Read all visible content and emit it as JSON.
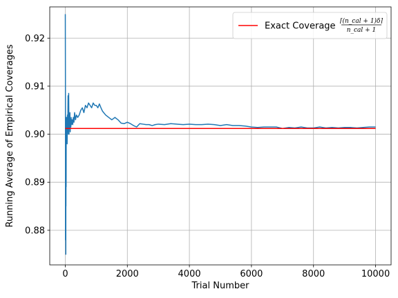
{
  "chart_data": {
    "type": "line",
    "title": "",
    "xlabel": "Trial Number",
    "ylabel": "Running Average of Empirical Coverages",
    "xlim": [
      -500,
      10500
    ],
    "ylim": [
      0.8728,
      0.9265
    ],
    "xticks": [
      0,
      2000,
      4000,
      6000,
      8000,
      10000
    ],
    "xtick_labels": [
      "0",
      "2000",
      "4000",
      "6000",
      "8000",
      "10000"
    ],
    "yticks": [
      0.88,
      0.89,
      0.9,
      0.91,
      0.92
    ],
    "ytick_labels": [
      "0.88",
      "0.89",
      "0.90",
      "0.91",
      "0.92"
    ],
    "grid": true,
    "legend_position": "top-right",
    "legend": {
      "text": "Exact Coverage",
      "numerator": "⌈(n_cal + 1)δ⌉",
      "denominator": "n_cal + 1"
    },
    "series": [
      {
        "name": "",
        "color": "#1f77b4",
        "x": [
          1,
          5,
          8,
          10,
          12,
          15,
          18,
          20,
          22,
          25,
          28,
          30,
          35,
          40,
          45,
          50,
          55,
          60,
          70,
          80,
          90,
          100,
          110,
          120,
          130,
          140,
          150,
          160,
          170,
          180,
          190,
          200,
          220,
          240,
          260,
          280,
          300,
          330,
          360,
          400,
          450,
          500,
          550,
          600,
          650,
          700,
          750,
          800,
          850,
          900,
          950,
          1000,
          1050,
          1100,
          1150,
          1200,
          1300,
          1400,
          1500,
          1600,
          1700,
          1800,
          1900,
          2000,
          2100,
          2200,
          2300,
          2400,
          2500,
          2600,
          2700,
          2800,
          2900,
          3000,
          3200,
          3400,
          3600,
          3800,
          4000,
          4200,
          4400,
          4600,
          4800,
          5000,
          5200,
          5400,
          5600,
          5800,
          6000,
          6200,
          6400,
          6600,
          6800,
          7000,
          7200,
          7400,
          7600,
          7800,
          8000,
          8200,
          8400,
          8600,
          8800,
          9000,
          9200,
          9400,
          9600,
          9800,
          10000
        ],
        "values": [
          0.925,
          0.912,
          0.878,
          0.9,
          0.88,
          0.893,
          0.875,
          0.9,
          0.885,
          0.895,
          0.889,
          0.897,
          0.9035,
          0.899,
          0.9015,
          0.9035,
          0.9,
          0.898,
          0.904,
          0.9005,
          0.908,
          0.9,
          0.9085,
          0.9,
          0.903,
          0.9015,
          0.9045,
          0.9005,
          0.903,
          0.9015,
          0.9035,
          0.902,
          0.903,
          0.902,
          0.9035,
          0.9025,
          0.9045,
          0.903,
          0.904,
          0.9035,
          0.904,
          0.905,
          0.9055,
          0.9045,
          0.906,
          0.9055,
          0.9065,
          0.906,
          0.9055,
          0.9065,
          0.906,
          0.906,
          0.9055,
          0.9063,
          0.9055,
          0.9048,
          0.904,
          0.9035,
          0.903,
          0.9035,
          0.903,
          0.9023,
          0.9022,
          0.9025,
          0.9022,
          0.9018,
          0.9015,
          0.9022,
          0.9021,
          0.902,
          0.902,
          0.9018,
          0.902,
          0.9021,
          0.902,
          0.9022,
          0.9021,
          0.902,
          0.9021,
          0.902,
          0.902,
          0.9021,
          0.902,
          0.9018,
          0.902,
          0.9018,
          0.9018,
          0.9017,
          0.9015,
          0.9014,
          0.9015,
          0.9015,
          0.9015,
          0.9012,
          0.9014,
          0.9013,
          0.9015,
          0.9013,
          0.9013,
          0.9015,
          0.9013,
          0.9014,
          0.9013,
          0.9014,
          0.9014,
          0.9013,
          0.9014,
          0.9015,
          0.9015
        ]
      },
      {
        "name": "Exact Coverage",
        "color": "#ff0000",
        "x": [
          0,
          10000
        ],
        "values": [
          0.9012,
          0.9012
        ]
      }
    ]
  }
}
